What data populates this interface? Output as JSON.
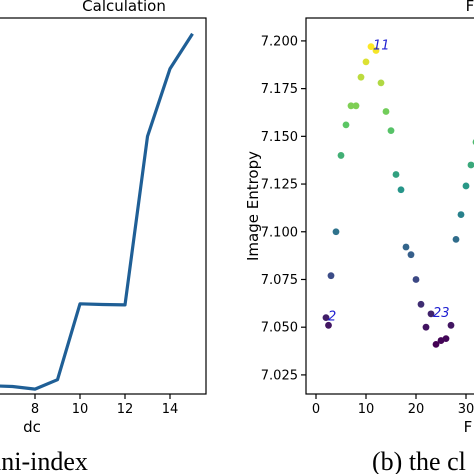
{
  "chart_data": [
    {
      "type": "line",
      "title": "Calculation",
      "xlabel": "dc",
      "ylabel": "",
      "x_ticks": [
        8,
        10,
        12,
        14
      ],
      "xlim": [
        6,
        15.6
      ],
      "ylim": [
        0,
        1
      ],
      "grid": false,
      "color": "#1f5f96",
      "series": [
        {
          "x": [
            6,
            7,
            8,
            9,
            10,
            11,
            12,
            13,
            14,
            15
          ],
          "y": [
            0.022,
            0.02,
            0.013,
            0.038,
            0.24,
            0.238,
            0.237,
            0.685,
            0.865,
            0.958
          ]
        }
      ],
      "caption": "ini-index"
    },
    {
      "type": "scatter",
      "title": "F",
      "xlabel": "F",
      "ylabel": "Image Entropy",
      "x_ticks": [
        0,
        10,
        20,
        30
      ],
      "y_ticks": [
        "7.025",
        "7.050",
        "7.075",
        "7.100",
        "7.125",
        "7.150",
        "7.175",
        "7.200"
      ],
      "xlim": [
        -2,
        34
      ],
      "ylim": [
        7.015,
        7.212
      ],
      "grid": false,
      "colormap": "viridis",
      "points": [
        {
          "x": 2,
          "y": 7.055
        },
        {
          "x": 3,
          "y": 7.077
        },
        {
          "x": 4,
          "y": 7.1
        },
        {
          "x": 5,
          "y": 7.14
        },
        {
          "x": 6,
          "y": 7.156
        },
        {
          "x": 7,
          "y": 7.166
        },
        {
          "x": 8,
          "y": 7.166
        },
        {
          "x": 9,
          "y": 7.181
        },
        {
          "x": 10,
          "y": 7.189
        },
        {
          "x": 11,
          "y": 7.197
        },
        {
          "x": 12,
          "y": 7.195
        },
        {
          "x": 13,
          "y": 7.178
        },
        {
          "x": 14,
          "y": 7.163
        },
        {
          "x": 15,
          "y": 7.153
        },
        {
          "x": 16,
          "y": 7.13
        },
        {
          "x": 17,
          "y": 7.122
        },
        {
          "x": 18,
          "y": 7.092
        },
        {
          "x": 19,
          "y": 7.088
        },
        {
          "x": 20,
          "y": 7.075
        },
        {
          "x": 21,
          "y": 7.062
        },
        {
          "x": 22,
          "y": 7.05
        },
        {
          "x": 23,
          "y": 7.057
        },
        {
          "x": 24,
          "y": 7.041
        },
        {
          "x": 25,
          "y": 7.043
        },
        {
          "x": 26,
          "y": 7.044
        },
        {
          "x": 27,
          "y": 7.051
        },
        {
          "x": 28,
          "y": 7.096
        },
        {
          "x": 29,
          "y": 7.109
        },
        {
          "x": 30,
          "y": 7.124
        },
        {
          "x": 31,
          "y": 7.135
        },
        {
          "x": 32,
          "y": 7.147
        },
        {
          "x": 2.5,
          "y": 7.051
        }
      ],
      "annotations": [
        {
          "text": "2",
          "x": 2,
          "y": 7.055
        },
        {
          "text": "11",
          "x": 11,
          "y": 7.197
        },
        {
          "text": "23",
          "x": 23,
          "y": 7.057
        }
      ],
      "caption": "(b) the cl"
    }
  ]
}
